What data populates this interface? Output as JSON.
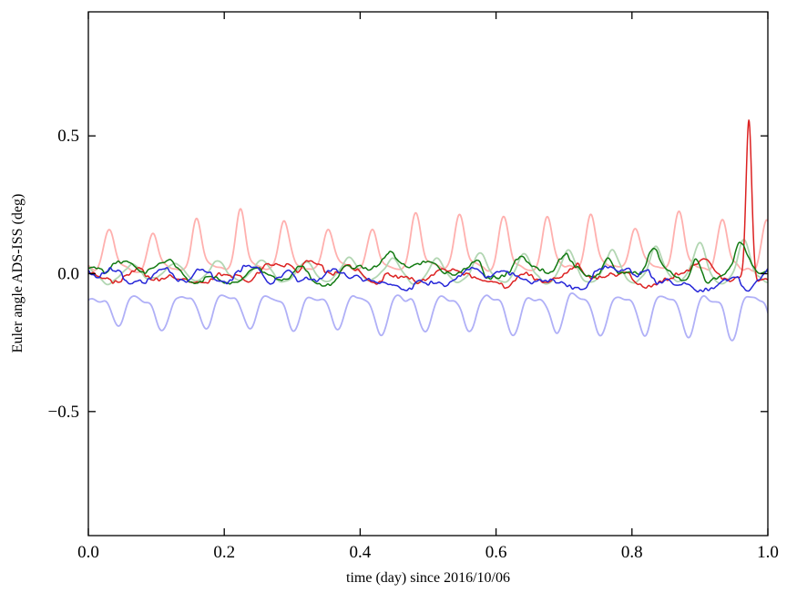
{
  "chart_data": {
    "type": "line",
    "title": "",
    "xlabel": "time (day) since 2016/10/06",
    "ylabel": "Euler angle ADS-ISS (deg)",
    "xlim": [
      0.0,
      1.0
    ],
    "ylim": [
      -0.95,
      0.95
    ],
    "grid": false,
    "legend": null,
    "xtick_values": [
      0.0,
      0.2,
      0.4,
      0.6,
      0.8,
      1.0
    ],
    "xtick_labels": [
      "0.0",
      "0.2",
      "0.4",
      "0.6",
      "0.8",
      "1.0"
    ],
    "ytick_values": [
      0.5,
      0.0,
      -0.5
    ],
    "ytick_labels": [
      "0.5",
      "0.0",
      "−0.5"
    ],
    "orbital_frequency_per_day": 15.5,
    "axis_color": "#000000",
    "background_color": "#ffffff",
    "series": [
      {
        "name": "red-line-light",
        "color": "#ffb0ae",
        "linewidth": 1.8,
        "model": {
          "offset": 0.025,
          "samples": 1500,
          "terms": [
            {
              "type": "spike",
              "freq": 15.5,
              "phase": -1.35,
              "amp": 0.165,
              "power": 4,
              "modulate": true
            },
            {
              "type": "sin",
              "freq": 15.5,
              "phase": -2.6,
              "amp": 0.012
            }
          ],
          "amp_mod": {
            "seed": 12,
            "scale": 120,
            "depth": 0.3
          },
          "noise": [
            {
              "seed": 3,
              "scale": 14,
              "amp": 0.008
            },
            {
              "seed": 4,
              "scale": 60,
              "amp": 0.008
            }
          ]
        }
      },
      {
        "name": "green-line-light",
        "color": "#b2d6b2",
        "linewidth": 1.8,
        "model": {
          "offset": 0.002,
          "samples": 1500,
          "terms": [
            {
              "type": "sin",
              "freq": 15.5,
              "phase": 1.9,
              "amp": 0.03
            },
            {
              "type": "spike",
              "freq": 15.5,
              "phase": 1.9,
              "amp": 0.09,
              "power": 4,
              "ramp": 1.5
            }
          ],
          "noise": [
            {
              "seed": 6,
              "scale": 14,
              "amp": 0.007
            },
            {
              "seed": 7,
              "scale": 70,
              "amp": 0.008
            }
          ]
        }
      },
      {
        "name": "blue-line-light",
        "color": "#b0b0f7",
        "linewidth": 1.8,
        "model": {
          "offset": -0.125,
          "samples": 1500,
          "terms": [
            {
              "type": "sin",
              "freq": 15.5,
              "phase": 0.5,
              "amp": 0.05
            },
            {
              "type": "sin",
              "freq": 31.0,
              "phase": 2.2,
              "amp": 0.02
            },
            {
              "type": "spike",
              "freq": 15.5,
              "phase": 3.6,
              "amp": -0.045,
              "power": 3,
              "ramp": 1.2
            }
          ],
          "noise": [
            {
              "seed": 8,
              "scale": 14,
              "amp": 0.007
            },
            {
              "seed": 9,
              "scale": 80,
              "amp": 0.01
            }
          ]
        }
      },
      {
        "name": "red-line",
        "color": "#dc2121",
        "linewidth": 1.5,
        "model": {
          "offset": 0.0,
          "samples": 1500,
          "terms": [
            {
              "type": "sin",
              "freq": 15.5,
              "phase": 0.9,
              "amp": 0.012
            },
            {
              "type": "gauss",
              "center": 0.972,
              "width": 0.0042,
              "amp": 0.58
            }
          ],
          "noise": [
            {
              "seed": 21,
              "scale": 90,
              "amp": 0.042
            },
            {
              "seed": 22,
              "scale": 22,
              "amp": 0.02
            },
            {
              "seed": 23,
              "scale": 6,
              "amp": 0.007
            }
          ]
        }
      },
      {
        "name": "green-line",
        "color": "#117a11",
        "linewidth": 1.5,
        "model": {
          "offset": 0.004,
          "samples": 1500,
          "terms": [
            {
              "type": "sin",
              "freq": 15.5,
              "phase": 2.4,
              "amp": 0.01
            },
            {
              "type": "spike",
              "freq": 15.5,
              "phase": 2.4,
              "amp": 0.09,
              "power": 4,
              "ramp": 2
            }
          ],
          "noise": [
            {
              "seed": 31,
              "scale": 90,
              "amp": 0.038
            },
            {
              "seed": 32,
              "scale": 20,
              "amp": 0.018
            },
            {
              "seed": 33,
              "scale": 6,
              "amp": 0.006
            }
          ]
        }
      },
      {
        "name": "blue-line",
        "color": "#2525d8",
        "linewidth": 1.5,
        "model": {
          "offset": -0.018,
          "samples": 1500,
          "terms": [
            {
              "type": "sin",
              "freq": 15.5,
              "phase": 3.8,
              "amp": 0.014
            }
          ],
          "noise": [
            {
              "seed": 41,
              "scale": 90,
              "amp": 0.04
            },
            {
              "seed": 42,
              "scale": 22,
              "amp": 0.02
            },
            {
              "seed": 43,
              "scale": 6,
              "amp": 0.007
            }
          ]
        }
      }
    ]
  }
}
